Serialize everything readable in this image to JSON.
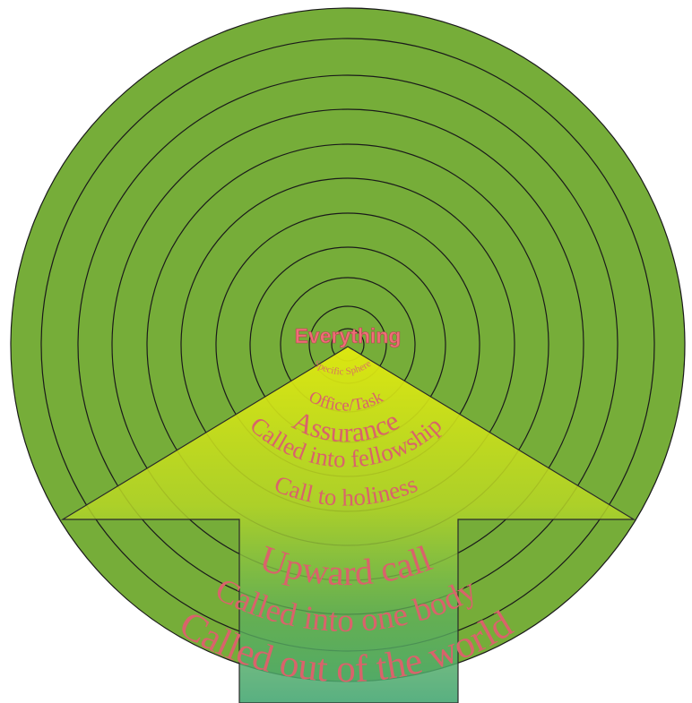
{
  "diagram": {
    "center_label": "Everything",
    "ring_labels": [
      "Specific Sphere",
      "Office/Task",
      "Assurance",
      "Called into fellowship",
      "Call to holiness",
      "Upward call",
      "Called into one body",
      "Called out of the world"
    ],
    "colors": {
      "disc_fill": "#76ad39",
      "ring_stroke": "#000000",
      "arrow_top": "#dbe80c",
      "arrow_mid": "#a9d22c",
      "arrow_bottom": "#46a773",
      "label_color": "#d9636b"
    }
  }
}
